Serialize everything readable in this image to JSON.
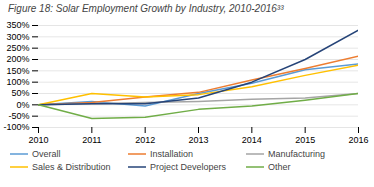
{
  "chart_data": {
    "type": "line",
    "title": "Figure 18: Solar Employment Growth by Industry, 2010-2016³³",
    "x": [
      2010,
      2011,
      2012,
      2013,
      2014,
      2015,
      2016
    ],
    "series": [
      {
        "name": "Overall",
        "color": "#5B9BD5",
        "values": [
          0,
          15,
          -5,
          50,
          95,
          155,
          180
        ]
      },
      {
        "name": "Installation",
        "color": "#ED7D31",
        "values": [
          0,
          10,
          35,
          55,
          110,
          160,
          215
        ]
      },
      {
        "name": "Manufacturing",
        "color": "#A5A5A5",
        "values": [
          0,
          5,
          10,
          15,
          25,
          30,
          50
        ]
      },
      {
        "name": "Sales & Distribution",
        "color": "#FFC000",
        "values": [
          0,
          50,
          35,
          45,
          80,
          130,
          175
        ]
      },
      {
        "name": "Project Developers",
        "color": "#264478",
        "values": [
          0,
          5,
          5,
          30,
          100,
          200,
          330
        ]
      },
      {
        "name": "Other",
        "color": "#70AD47",
        "values": [
          0,
          -60,
          -55,
          -20,
          -5,
          20,
          50
        ]
      }
    ],
    "xlim": [
      2010,
      2016
    ],
    "xticks": [
      2010,
      2011,
      2012,
      2013,
      2014,
      2015,
      2016
    ],
    "ylim": [
      -100,
      350
    ],
    "yticks": [
      {
        "value": -100,
        "label": "-100%"
      },
      {
        "value": -50,
        "label": "-50%"
      },
      {
        "value": 0,
        "label": "0%"
      },
      {
        "value": 50,
        "label": "50%"
      },
      {
        "value": 100,
        "label": "100%"
      },
      {
        "value": 150,
        "label": "150%"
      },
      {
        "value": 200,
        "label": "200%"
      },
      {
        "value": 250,
        "label": "250%"
      },
      {
        "value": 300,
        "label": "300%"
      },
      {
        "value": 350,
        "label": "350%"
      }
    ],
    "grid": true,
    "legend": "bottom",
    "line_style": "solid"
  }
}
